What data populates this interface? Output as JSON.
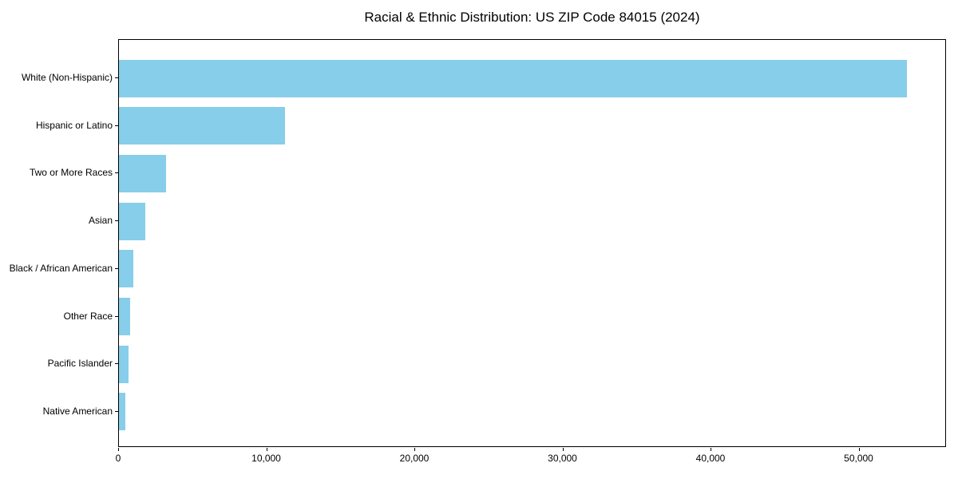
{
  "title": "Racial & Ethnic Distribution: US ZIP Code 84015 (2024)",
  "chart_data": {
    "type": "bar",
    "orientation": "horizontal",
    "title": "Racial & Ethnic Distribution: US ZIP Code 84015 (2024)",
    "categories": [
      "White (Non-Hispanic)",
      "Hispanic or Latino",
      "Two or More Races",
      "Asian",
      "Black / African American",
      "Other Race",
      "Pacific Islander",
      "Native American"
    ],
    "values": [
      53200,
      11200,
      3200,
      1800,
      950,
      750,
      620,
      420
    ],
    "xlabel": "",
    "ylabel": "",
    "xlim": [
      0,
      55900
    ],
    "x_ticks": [
      0,
      10000,
      20000,
      30000,
      40000,
      50000
    ],
    "x_tick_labels": [
      "0",
      "10,000",
      "20,000",
      "30,000",
      "40,000",
      "50,000"
    ],
    "bar_color": "#87CEEB",
    "background_color": "#ffffff",
    "text_color": "#000000",
    "grid": false,
    "legend": "none"
  }
}
